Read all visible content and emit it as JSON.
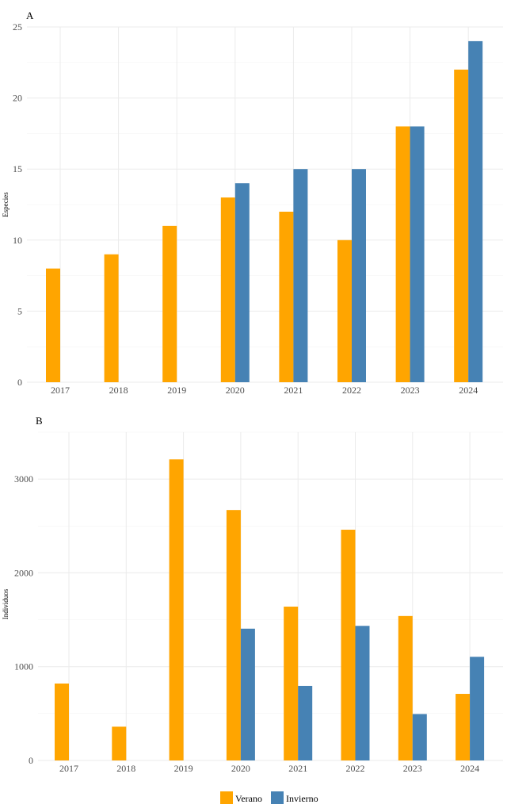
{
  "colors": {
    "verano": "#ffa500",
    "invierno": "#4682b4"
  },
  "legend": [
    {
      "name": "Verano",
      "color": "#ffa500"
    },
    {
      "name": "Invierno",
      "color": "#4682b4"
    }
  ],
  "chart_data": [
    {
      "type": "bar",
      "panel": "A",
      "categories": [
        "2017",
        "2018",
        "2019",
        "2020",
        "2021",
        "2022",
        "2023",
        "2024"
      ],
      "ylabel": "Especies",
      "ylim": [
        0,
        25
      ],
      "yticks": [
        0,
        5,
        10,
        15,
        20,
        25
      ],
      "grid": true,
      "series": [
        {
          "name": "Verano",
          "values": [
            8,
            9,
            11,
            13,
            12,
            10,
            18,
            22
          ]
        },
        {
          "name": "Invierno",
          "values": [
            null,
            null,
            null,
            14,
            15,
            15,
            18,
            24
          ]
        }
      ]
    },
    {
      "type": "bar",
      "panel": "B",
      "categories": [
        "2017",
        "2018",
        "2019",
        "2020",
        "2021",
        "2022",
        "2023",
        "2024"
      ],
      "ylabel": "Individuos",
      "ylim": [
        0,
        3500
      ],
      "yticks": [
        0,
        1000,
        2000,
        3000
      ],
      "grid": true,
      "series": [
        {
          "name": "Verano",
          "values": [
            820,
            360,
            3210,
            2670,
            1640,
            2460,
            1540,
            710
          ]
        },
        {
          "name": "Invierno",
          "values": [
            null,
            null,
            null,
            1405,
            795,
            1435,
            495,
            1105
          ]
        }
      ]
    }
  ]
}
